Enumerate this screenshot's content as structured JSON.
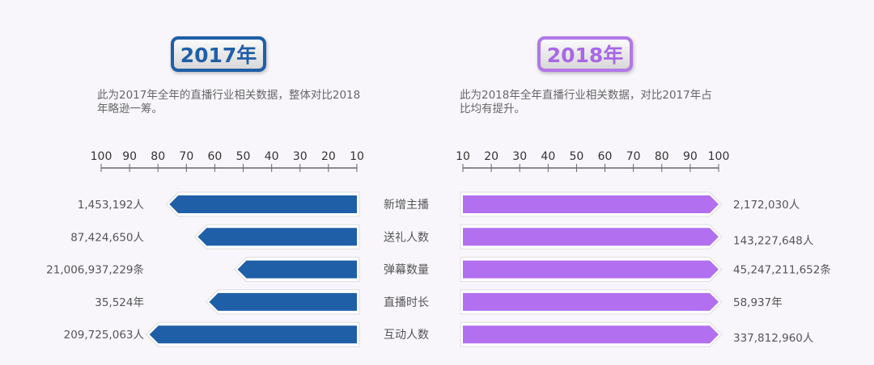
{
  "left_panel": {
    "year_label": "2017年",
    "description": "此为2017年全年的直播行业相关数据，整体对比2018年略逊一筹。"
  },
  "right_panel": {
    "year_label": "2018年",
    "description": "此为2018年全年直播行业相关数据，对比2017年占比均有提升。"
  },
  "colors": {
    "bar_2017": "#1f5fa7",
    "bar_2018": "#b26ff0",
    "accent_2018_border": "#b277e8"
  },
  "chart_data": {
    "type": "bar",
    "orientation": "horizontal-butterfly",
    "categories": [
      "新增主播",
      "送礼人数",
      "弹幕数量",
      "直播时长",
      "互动人数"
    ],
    "axis_ticks_left": [
      100,
      90,
      80,
      70,
      60,
      50,
      40,
      30,
      20,
      10
    ],
    "axis_ticks_right": [
      10,
      20,
      30,
      40,
      50,
      60,
      70,
      80,
      90,
      100
    ],
    "xlim": [
      10,
      100
    ],
    "grid": false,
    "series": [
      {
        "name": "2017年",
        "values": [
          76,
          66,
          52,
          62,
          83
        ],
        "labels": [
          "1,453,192人",
          "87,424,650人",
          "21,006,937,229条",
          "35,524年",
          "209,725,063人"
        ]
      },
      {
        "name": "2018年",
        "values": [
          100,
          100,
          100,
          100,
          100
        ],
        "labels": [
          "2,172,030人",
          "143,227,648人",
          "45,247,211,652条",
          "58,937年",
          "337,812,960人"
        ]
      }
    ]
  }
}
